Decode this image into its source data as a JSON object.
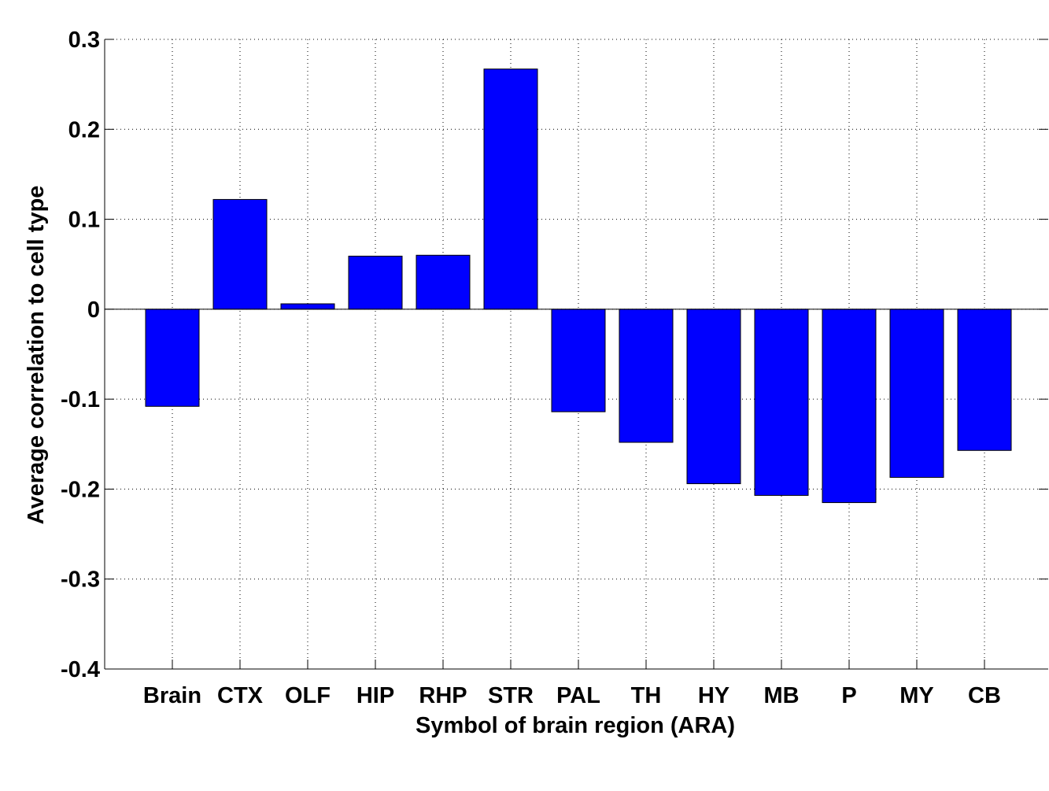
{
  "chart_data": {
    "type": "bar",
    "title": "",
    "xlabel": "Symbol of brain region (ARA)",
    "ylabel": "Average correlation to cell type",
    "categories": [
      "Brain",
      "CTX",
      "OLF",
      "HIP",
      "RHP",
      "STR",
      "PAL",
      "TH",
      "HY",
      "MB",
      "P",
      "MY",
      "CB"
    ],
    "values": [
      -0.108,
      0.122,
      0.006,
      0.059,
      0.06,
      0.267,
      -0.114,
      -0.148,
      -0.194,
      -0.207,
      -0.215,
      -0.187,
      -0.157
    ],
    "ylim": [
      -0.4,
      0.3
    ],
    "yticks": [
      -0.4,
      -0.3,
      -0.2,
      -0.1,
      0,
      0.1,
      0.2,
      0.3
    ],
    "ytick_labels": [
      "-0.4",
      "-0.3",
      "-0.2",
      "-0.1",
      "0",
      "0.1",
      "0.2",
      "0.3"
    ],
    "grid": true,
    "bar_color": "#0000ff",
    "edge_color": "#000000"
  }
}
